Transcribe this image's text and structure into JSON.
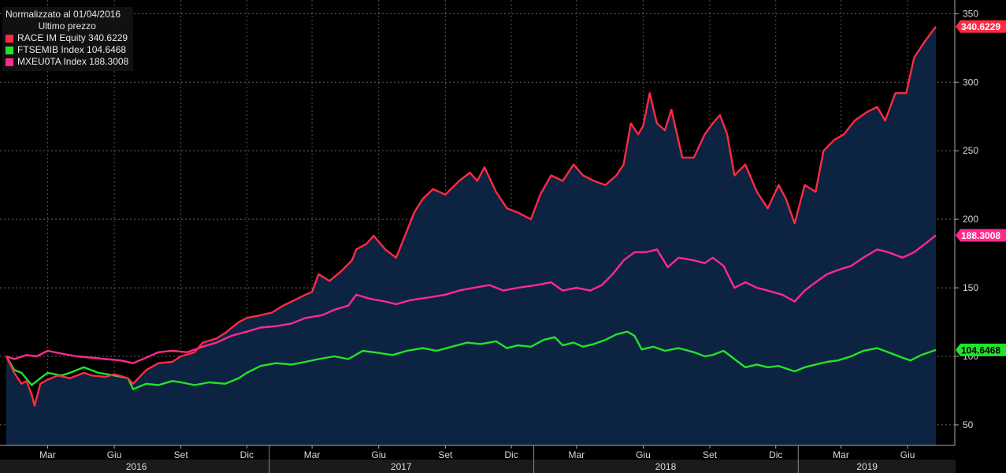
{
  "legend": {
    "title": "Normalizzato al 01/04/2016",
    "subtitle": "Ultimo prezzo"
  },
  "chart_data": {
    "type": "line",
    "title": "Normalizzato al 01/04/2016",
    "subtitle": "Ultimo prezzo",
    "ylim": [
      35,
      360
    ],
    "y_ticks": [
      50,
      100,
      150,
      200,
      250,
      300,
      350
    ],
    "x_ticks": [
      {
        "label": "Mar",
        "date": "2016-03-01"
      },
      {
        "label": "Giu",
        "date": "2016-06-01"
      },
      {
        "label": "Set",
        "date": "2016-09-01"
      },
      {
        "label": "Dic",
        "date": "2016-12-01"
      },
      {
        "label": "Mar",
        "date": "2017-03-01"
      },
      {
        "label": "Giu",
        "date": "2017-06-01"
      },
      {
        "label": "Set",
        "date": "2017-09-01"
      },
      {
        "label": "Dic",
        "date": "2017-12-01"
      },
      {
        "label": "Mar",
        "date": "2018-03-01"
      },
      {
        "label": "Giu",
        "date": "2018-06-01"
      },
      {
        "label": "Set",
        "date": "2018-09-01"
      },
      {
        "label": "Dic",
        "date": "2018-12-01"
      },
      {
        "label": "Mar",
        "date": "2019-03-01"
      },
      {
        "label": "Giu",
        "date": "2019-06-01"
      }
    ],
    "years": [
      {
        "label": "2016",
        "start": "2016-01-01",
        "end": "2016-12-31"
      },
      {
        "label": "2017",
        "start": "2017-01-01",
        "end": "2017-12-31"
      },
      {
        "label": "2018",
        "start": "2018-01-01",
        "end": "2018-12-31"
      },
      {
        "label": "2019",
        "start": "2019-01-01",
        "end": "2019-07-10"
      }
    ],
    "x_range": [
      "2016-01-04",
      "2019-07-10"
    ],
    "series": [
      {
        "name": "RACE IM Equity",
        "last": "340.6229",
        "color": "#ff2a44",
        "fill": true,
        "points": [
          [
            "2016-01-04",
            100
          ],
          [
            "2016-01-15",
            88
          ],
          [
            "2016-01-25",
            80
          ],
          [
            "2016-02-01",
            82
          ],
          [
            "2016-02-08",
            72
          ],
          [
            "2016-02-12",
            64
          ],
          [
            "2016-02-20",
            80
          ],
          [
            "2016-03-01",
            83
          ],
          [
            "2016-03-15",
            86
          ],
          [
            "2016-04-01",
            84
          ],
          [
            "2016-04-20",
            88
          ],
          [
            "2016-05-01",
            86
          ],
          [
            "2016-05-20",
            85
          ],
          [
            "2016-06-01",
            87
          ],
          [
            "2016-06-20",
            84
          ],
          [
            "2016-06-27",
            80
          ],
          [
            "2016-07-15",
            90
          ],
          [
            "2016-08-01",
            95
          ],
          [
            "2016-08-20",
            96
          ],
          [
            "2016-09-01",
            100
          ],
          [
            "2016-09-20",
            103
          ],
          [
            "2016-10-01",
            110
          ],
          [
            "2016-10-20",
            113
          ],
          [
            "2016-11-01",
            117
          ],
          [
            "2016-11-20",
            125
          ],
          [
            "2016-12-01",
            128
          ],
          [
            "2016-12-20",
            130
          ],
          [
            "2017-01-05",
            132
          ],
          [
            "2017-01-20",
            137
          ],
          [
            "2017-02-01",
            140
          ],
          [
            "2017-02-20",
            145
          ],
          [
            "2017-03-01",
            147
          ],
          [
            "2017-03-10",
            160
          ],
          [
            "2017-03-25",
            155
          ],
          [
            "2017-04-10",
            162
          ],
          [
            "2017-04-25",
            170
          ],
          [
            "2017-05-01",
            178
          ],
          [
            "2017-05-15",
            182
          ],
          [
            "2017-05-25",
            188
          ],
          [
            "2017-06-10",
            178
          ],
          [
            "2017-06-25",
            172
          ],
          [
            "2017-07-05",
            185
          ],
          [
            "2017-07-20",
            205
          ],
          [
            "2017-08-01",
            215
          ],
          [
            "2017-08-15",
            222
          ],
          [
            "2017-09-01",
            218
          ],
          [
            "2017-09-20",
            228
          ],
          [
            "2017-10-05",
            234
          ],
          [
            "2017-10-15",
            228
          ],
          [
            "2017-10-25",
            238
          ],
          [
            "2017-11-10",
            220
          ],
          [
            "2017-11-25",
            208
          ],
          [
            "2017-12-10",
            205
          ],
          [
            "2017-12-28",
            200
          ],
          [
            "2018-01-10",
            218
          ],
          [
            "2018-01-25",
            232
          ],
          [
            "2018-02-10",
            228
          ],
          [
            "2018-02-25",
            240
          ],
          [
            "2018-03-10",
            232
          ],
          [
            "2018-03-25",
            228
          ],
          [
            "2018-04-10",
            225
          ],
          [
            "2018-04-25",
            232
          ],
          [
            "2018-05-05",
            240
          ],
          [
            "2018-05-15",
            270
          ],
          [
            "2018-05-25",
            262
          ],
          [
            "2018-06-01",
            268
          ],
          [
            "2018-06-10",
            292
          ],
          [
            "2018-06-20",
            270
          ],
          [
            "2018-07-01",
            265
          ],
          [
            "2018-07-10",
            280
          ],
          [
            "2018-07-25",
            245
          ],
          [
            "2018-08-10",
            245
          ],
          [
            "2018-08-25",
            262
          ],
          [
            "2018-09-05",
            270
          ],
          [
            "2018-09-15",
            276
          ],
          [
            "2018-09-25",
            262
          ],
          [
            "2018-10-05",
            232
          ],
          [
            "2018-10-20",
            240
          ],
          [
            "2018-11-05",
            220
          ],
          [
            "2018-11-20",
            208
          ],
          [
            "2018-12-05",
            225
          ],
          [
            "2018-12-15",
            215
          ],
          [
            "2018-12-27",
            197
          ],
          [
            "2019-01-10",
            225
          ],
          [
            "2019-01-25",
            220
          ],
          [
            "2019-02-05",
            250
          ],
          [
            "2019-02-20",
            258
          ],
          [
            "2019-03-05",
            262
          ],
          [
            "2019-03-20",
            272
          ],
          [
            "2019-04-05",
            278
          ],
          [
            "2019-04-20",
            282
          ],
          [
            "2019-05-01",
            272
          ],
          [
            "2019-05-15",
            292
          ],
          [
            "2019-05-30",
            292
          ],
          [
            "2019-06-10",
            318
          ],
          [
            "2019-06-25",
            330
          ],
          [
            "2019-07-10",
            340.6229
          ]
        ]
      },
      {
        "name": "FTSEMIB Index",
        "last": "104.6468",
        "color": "#22e32a",
        "fill": false,
        "points": [
          [
            "2016-01-04",
            100
          ],
          [
            "2016-01-15",
            90
          ],
          [
            "2016-01-25",
            88
          ],
          [
            "2016-02-08",
            79
          ],
          [
            "2016-02-20",
            84
          ],
          [
            "2016-03-01",
            88
          ],
          [
            "2016-03-20",
            86
          ],
          [
            "2016-04-01",
            88
          ],
          [
            "2016-04-20",
            92
          ],
          [
            "2016-05-10",
            88
          ],
          [
            "2016-06-01",
            86
          ],
          [
            "2016-06-20",
            84
          ],
          [
            "2016-06-27",
            76
          ],
          [
            "2016-07-15",
            80
          ],
          [
            "2016-08-01",
            79
          ],
          [
            "2016-08-20",
            82
          ],
          [
            "2016-09-01",
            81
          ],
          [
            "2016-09-20",
            79
          ],
          [
            "2016-10-10",
            81
          ],
          [
            "2016-11-01",
            80
          ],
          [
            "2016-11-20",
            84
          ],
          [
            "2016-12-01",
            88
          ],
          [
            "2016-12-20",
            93
          ],
          [
            "2017-01-10",
            95
          ],
          [
            "2017-02-01",
            94
          ],
          [
            "2017-02-20",
            96
          ],
          [
            "2017-03-10",
            98
          ],
          [
            "2017-04-01",
            100
          ],
          [
            "2017-04-20",
            98
          ],
          [
            "2017-05-10",
            104
          ],
          [
            "2017-05-25",
            103
          ],
          [
            "2017-06-20",
            101
          ],
          [
            "2017-07-10",
            104
          ],
          [
            "2017-08-01",
            106
          ],
          [
            "2017-08-20",
            104
          ],
          [
            "2017-09-10",
            107
          ],
          [
            "2017-10-01",
            110
          ],
          [
            "2017-10-20",
            109
          ],
          [
            "2017-11-10",
            111
          ],
          [
            "2017-11-25",
            106
          ],
          [
            "2017-12-10",
            108
          ],
          [
            "2017-12-28",
            107
          ],
          [
            "2018-01-15",
            112
          ],
          [
            "2018-01-30",
            114
          ],
          [
            "2018-02-10",
            108
          ],
          [
            "2018-02-25",
            110
          ],
          [
            "2018-03-10",
            107
          ],
          [
            "2018-03-25",
            109
          ],
          [
            "2018-04-10",
            112
          ],
          [
            "2018-04-25",
            116
          ],
          [
            "2018-05-10",
            118
          ],
          [
            "2018-05-20",
            115
          ],
          [
            "2018-05-30",
            105
          ],
          [
            "2018-06-15",
            107
          ],
          [
            "2018-07-01",
            104
          ],
          [
            "2018-07-20",
            106
          ],
          [
            "2018-08-10",
            103
          ],
          [
            "2018-08-25",
            100
          ],
          [
            "2018-09-05",
            101
          ],
          [
            "2018-09-20",
            104
          ],
          [
            "2018-10-05",
            98
          ],
          [
            "2018-10-20",
            92
          ],
          [
            "2018-11-05",
            94
          ],
          [
            "2018-11-20",
            92
          ],
          [
            "2018-12-05",
            93
          ],
          [
            "2018-12-27",
            89
          ],
          [
            "2019-01-10",
            92
          ],
          [
            "2019-01-25",
            94
          ],
          [
            "2019-02-10",
            96
          ],
          [
            "2019-02-25",
            97
          ],
          [
            "2019-03-15",
            100
          ],
          [
            "2019-04-01",
            104
          ],
          [
            "2019-04-20",
            106
          ],
          [
            "2019-05-05",
            103
          ],
          [
            "2019-05-25",
            99
          ],
          [
            "2019-06-05",
            97
          ],
          [
            "2019-06-20",
            101
          ],
          [
            "2019-07-10",
            104.6468
          ]
        ]
      },
      {
        "name": "MXEU0TA Index",
        "last": "188.3008",
        "color": "#ff2a8c",
        "fill": false,
        "points": [
          [
            "2016-01-04",
            100
          ],
          [
            "2016-01-15",
            98
          ],
          [
            "2016-02-01",
            101
          ],
          [
            "2016-02-15",
            100
          ],
          [
            "2016-03-01",
            104
          ],
          [
            "2016-03-20",
            102
          ],
          [
            "2016-04-10",
            100
          ],
          [
            "2016-05-01",
            99
          ],
          [
            "2016-05-20",
            98
          ],
          [
            "2016-06-10",
            97
          ],
          [
            "2016-06-27",
            95
          ],
          [
            "2016-07-15",
            99
          ],
          [
            "2016-08-01",
            103
          ],
          [
            "2016-08-20",
            104
          ],
          [
            "2016-09-10",
            103
          ],
          [
            "2016-10-01",
            107
          ],
          [
            "2016-10-20",
            110
          ],
          [
            "2016-11-10",
            115
          ],
          [
            "2016-12-01",
            118
          ],
          [
            "2016-12-20",
            121
          ],
          [
            "2017-01-10",
            122
          ],
          [
            "2017-02-01",
            124
          ],
          [
            "2017-02-20",
            128
          ],
          [
            "2017-03-15",
            130
          ],
          [
            "2017-04-01",
            134
          ],
          [
            "2017-04-20",
            137
          ],
          [
            "2017-05-01",
            145
          ],
          [
            "2017-05-20",
            142
          ],
          [
            "2017-06-10",
            140
          ],
          [
            "2017-06-25",
            138
          ],
          [
            "2017-07-15",
            141
          ],
          [
            "2017-08-10",
            143
          ],
          [
            "2017-09-01",
            145
          ],
          [
            "2017-09-20",
            148
          ],
          [
            "2017-10-10",
            150
          ],
          [
            "2017-11-01",
            152
          ],
          [
            "2017-11-20",
            148
          ],
          [
            "2017-12-10",
            150
          ],
          [
            "2018-01-05",
            152
          ],
          [
            "2018-01-25",
            154
          ],
          [
            "2018-02-10",
            148
          ],
          [
            "2018-03-01",
            150
          ],
          [
            "2018-03-20",
            148
          ],
          [
            "2018-04-05",
            152
          ],
          [
            "2018-04-20",
            160
          ],
          [
            "2018-05-05",
            170
          ],
          [
            "2018-05-20",
            176
          ],
          [
            "2018-06-05",
            176
          ],
          [
            "2018-06-20",
            178
          ],
          [
            "2018-07-05",
            165
          ],
          [
            "2018-07-20",
            172
          ],
          [
            "2018-08-10",
            170
          ],
          [
            "2018-08-25",
            168
          ],
          [
            "2018-09-05",
            172
          ],
          [
            "2018-09-20",
            166
          ],
          [
            "2018-10-05",
            150
          ],
          [
            "2018-10-20",
            154
          ],
          [
            "2018-11-05",
            150
          ],
          [
            "2018-11-20",
            148
          ],
          [
            "2018-12-10",
            145
          ],
          [
            "2018-12-27",
            140
          ],
          [
            "2019-01-10",
            148
          ],
          [
            "2019-01-25",
            154
          ],
          [
            "2019-02-10",
            160
          ],
          [
            "2019-02-25",
            163
          ],
          [
            "2019-03-15",
            166
          ],
          [
            "2019-04-01",
            172
          ],
          [
            "2019-04-20",
            178
          ],
          [
            "2019-05-05",
            176
          ],
          [
            "2019-05-25",
            172
          ],
          [
            "2019-06-10",
            176
          ],
          [
            "2019-06-25",
            182
          ],
          [
            "2019-07-10",
            188.3008
          ]
        ]
      }
    ]
  }
}
